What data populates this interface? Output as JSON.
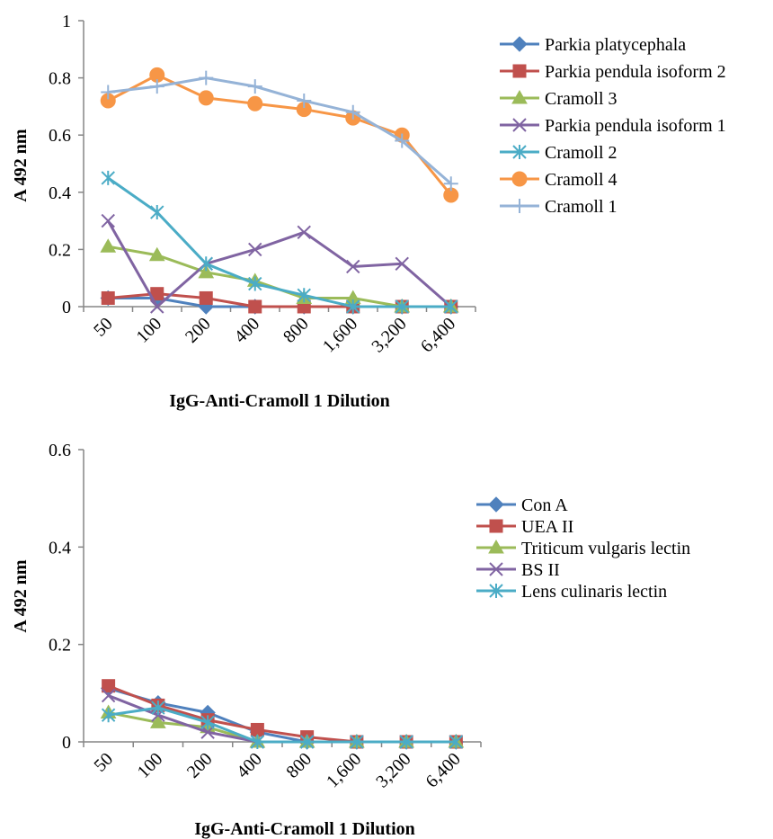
{
  "chart_data": [
    {
      "type": "line",
      "categories": [
        "50",
        "100",
        "200",
        "400",
        "800",
        "1,600",
        "3,200",
        "6,400"
      ],
      "xlabel": "IgG-Anti-Cramoll 1 Dilution",
      "ylabel": "A 492 nm",
      "ylim": [
        0,
        1
      ],
      "yticks": [
        "0",
        "0.2",
        "0.4",
        "0.6",
        "0.8",
        "1"
      ],
      "grid": false,
      "legend": "right",
      "series": [
        {
          "name": "Parkia platycephala",
          "color": "#4F81BD",
          "marker": "diamond",
          "values": [
            0.03,
            0.03,
            0.0,
            0.0,
            0.0,
            0.0,
            0.0,
            0.0
          ]
        },
        {
          "name": "Parkia pendula isoform 2",
          "color": "#C0504D",
          "marker": "square",
          "values": [
            0.03,
            0.045,
            0.03,
            0.0,
            0.0,
            0.0,
            0.0,
            0.0
          ]
        },
        {
          "name": "Cramoll 3",
          "color": "#9BBB59",
          "marker": "triangle",
          "values": [
            0.21,
            0.18,
            0.12,
            0.09,
            0.03,
            0.03,
            0.0,
            0.0
          ]
        },
        {
          "name": "Parkia pendula isoform 1",
          "color": "#8064A2",
          "marker": "x",
          "values": [
            0.3,
            0.0,
            0.15,
            0.2,
            0.26,
            0.14,
            0.15,
            0.0
          ]
        },
        {
          "name": "Cramoll 2",
          "color": "#4BACC6",
          "marker": "star",
          "values": [
            0.45,
            0.33,
            0.15,
            0.08,
            0.04,
            0.0,
            0.0,
            0.0
          ]
        },
        {
          "name": "Cramoll 4",
          "color": "#F79646",
          "marker": "circle",
          "values": [
            0.72,
            0.81,
            0.73,
            0.71,
            0.69,
            0.66,
            0.6,
            0.39
          ]
        },
        {
          "name": "Cramoll 1",
          "color": "#95B3D7",
          "marker": "plus",
          "values": [
            0.75,
            0.77,
            0.8,
            0.77,
            0.72,
            0.68,
            0.58,
            0.43
          ]
        }
      ]
    },
    {
      "type": "line",
      "categories": [
        "50",
        "100",
        "200",
        "400",
        "800",
        "1,600",
        "3,200",
        "6,400"
      ],
      "xlabel": "IgG-Anti-Cramoll 1 Dilution",
      "ylabel": "A 492 nm",
      "ylim": [
        0,
        0.6
      ],
      "yticks": [
        "0",
        "0.2",
        "0.4",
        "0.6"
      ],
      "grid": false,
      "legend": "right",
      "series": [
        {
          "name": "Con A",
          "color": "#4F81BD",
          "marker": "diamond",
          "values": [
            0.11,
            0.08,
            0.06,
            0.02,
            0.0,
            0.0,
            0.0,
            0.0
          ]
        },
        {
          "name": "UEA II",
          "color": "#C0504D",
          "marker": "square",
          "values": [
            0.115,
            0.075,
            0.045,
            0.025,
            0.01,
            0.0,
            0.0,
            0.0
          ]
        },
        {
          "name": "Triticum vulgaris lectin",
          "color": "#9BBB59",
          "marker": "triangle",
          "values": [
            0.06,
            0.04,
            0.03,
            0.0,
            0.0,
            0.0,
            0.0,
            0.0
          ]
        },
        {
          "name": "BS II",
          "color": "#8064A2",
          "marker": "x",
          "values": [
            0.095,
            0.055,
            0.02,
            0.0,
            0.0,
            0.0,
            0.0,
            0.0
          ]
        },
        {
          "name": "Lens culinaris lectin",
          "color": "#4BACC6",
          "marker": "star",
          "values": [
            0.055,
            0.07,
            0.04,
            0.0,
            0.0,
            0.0,
            0.0,
            0.0
          ]
        }
      ]
    }
  ]
}
